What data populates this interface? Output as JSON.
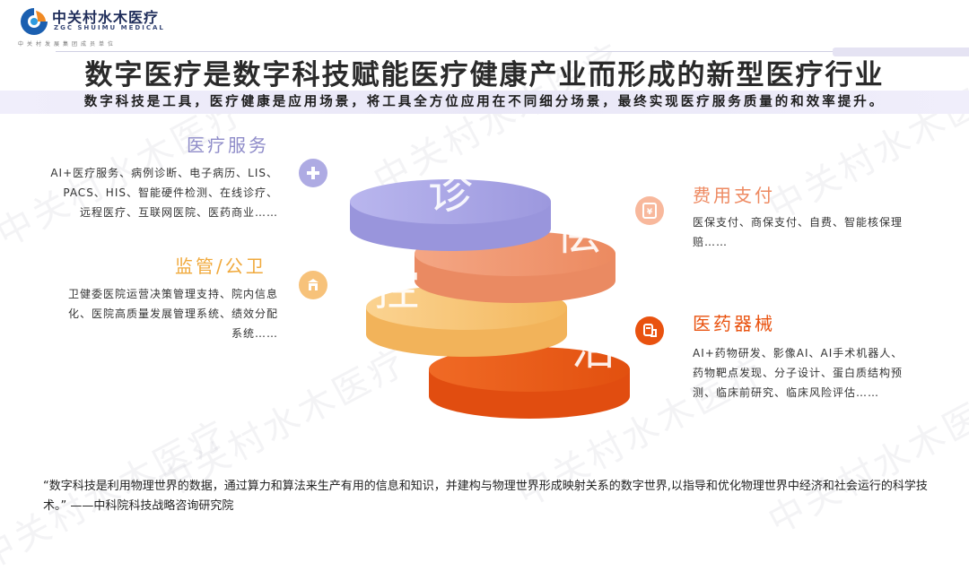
{
  "header": {
    "logo_cn": "中关村水木医疗",
    "logo_en": "ZGC SHUIMU MEDICAL",
    "logo_sub": "中关村发展集团成员单位"
  },
  "title": "数字医疗是数字科技赋能医疗健康产业而形成的新型医疗行业",
  "subtitle": "数字科技是工具，医疗健康是应用场景，将工具全方位应用在不同细分场景，最终实现医疗服务质量的和效率提升。",
  "watermark": "中关村水木医疗",
  "sections": {
    "medical_service": {
      "title": "医疗服务",
      "lines": [
        "AI+医疗服务、病例诊断、电子病历、LIS、",
        "PACS、HIS、智能硬件检测、在线诊疗、",
        "远程医疗、互联网医院、医药商业……"
      ],
      "icon": "plus-icon",
      "color": "#a9a6df"
    },
    "regulation": {
      "title": "监管/公卫",
      "lines": [
        "卫健委医院运营决策管理支持、院内信息",
        "化、医院高质量发展管理系统、绩效分配",
        "系统……"
      ],
      "icon": "building-icon",
      "color": "#f5bc6a"
    },
    "payment": {
      "title": "费用支付",
      "lines": [
        "医保支付、商保支付、自费、智能核保理",
        "赔……"
      ],
      "icon": "payment-icon",
      "color": "#f4a98a"
    },
    "pharma": {
      "title": "医药器械",
      "lines": [
        "AI+药物研发、影像AI、AI手术机器人、",
        "药物靶点发现、分子设计、蛋白质结构预",
        "测、临床前研究、临床风险评估……"
      ],
      "icon": "medical-device-icon",
      "color": "#e9520f"
    }
  },
  "disks": {
    "top": "诊",
    "second": "偿",
    "third": "控",
    "bottom": "治"
  },
  "quote": "“数字科技是利用物理世界的数据，通过算力和算法来生产有用的信息和知识，并建构与物理世界形成映射关系的数字世界,以指导和优化物理世界中经济和社会运行的科学技术。”  ——中科院科技战略咨询研究院"
}
